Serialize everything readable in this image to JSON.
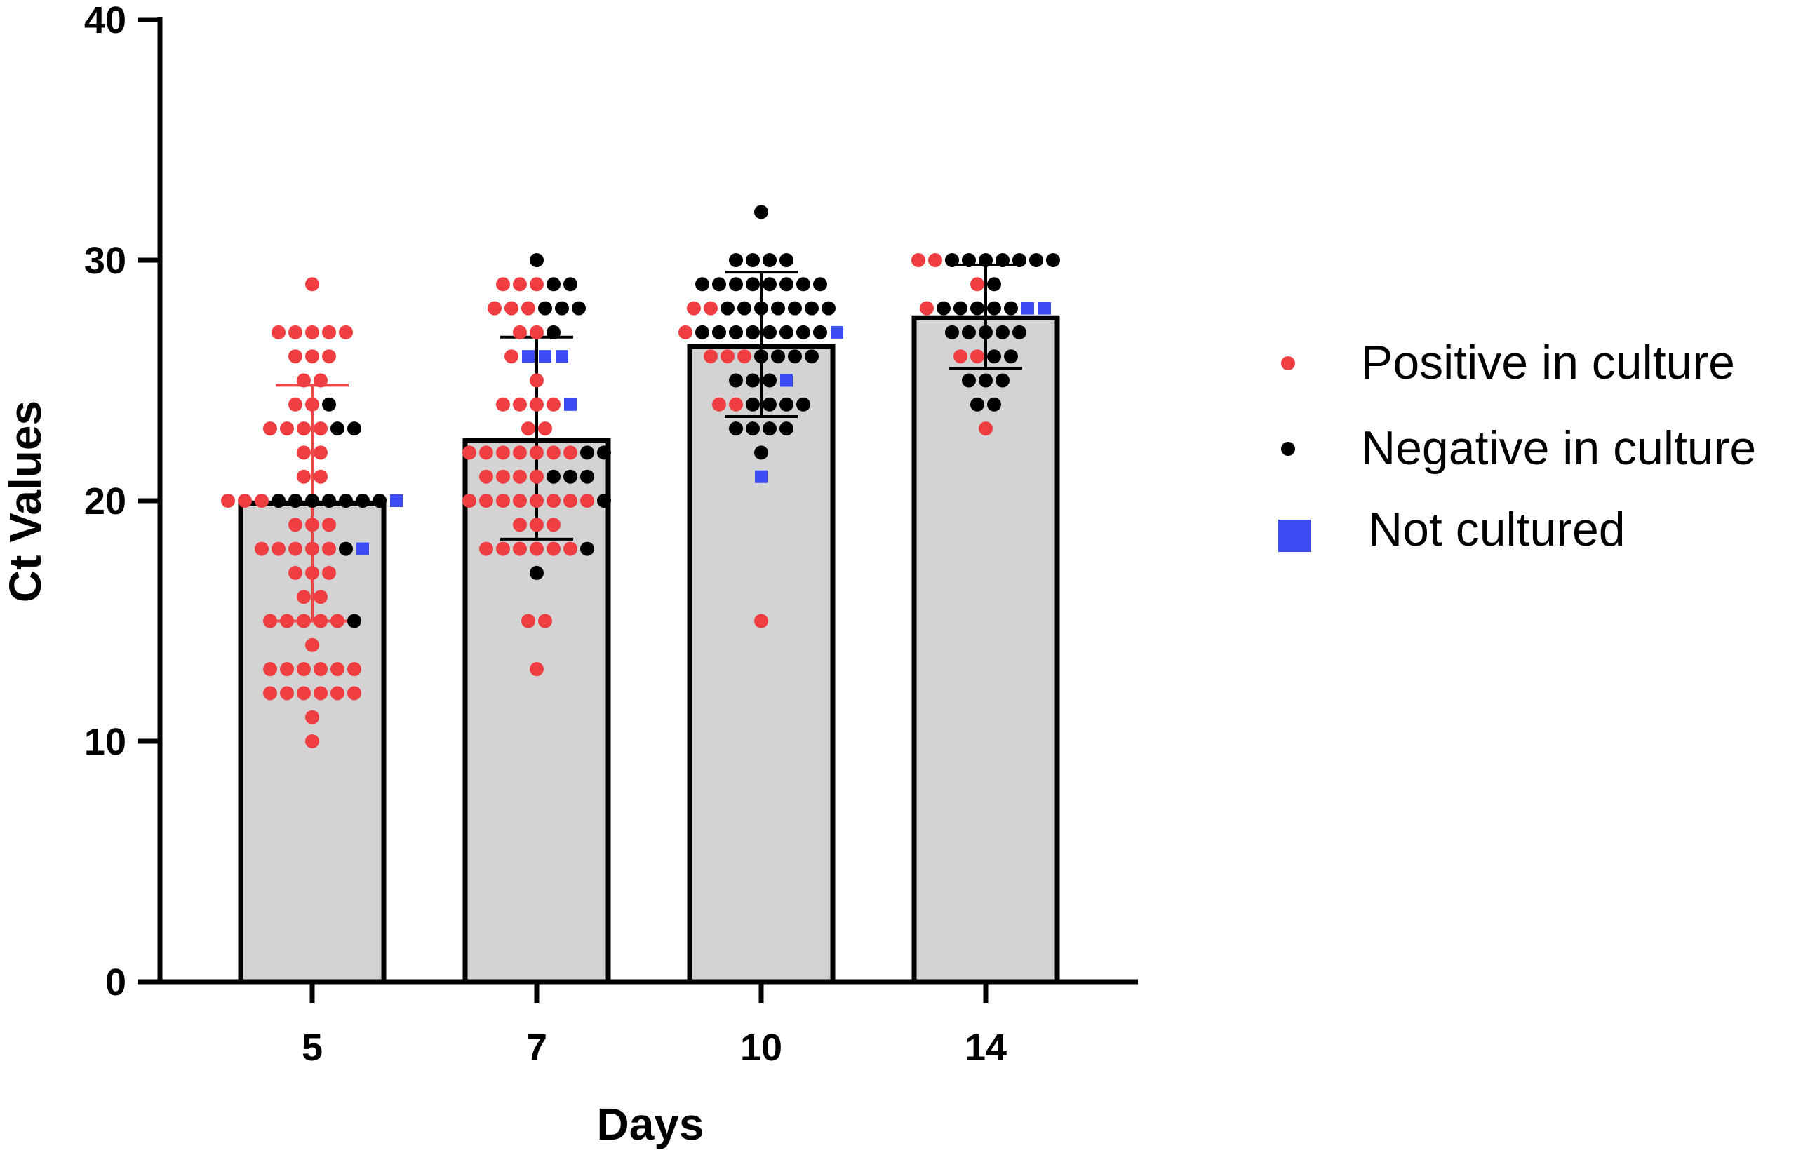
{
  "chart_data": {
    "type": "bar",
    "xlabel": "Days",
    "ylabel": "Ct Values",
    "ylim": [
      0,
      40
    ],
    "yticks": [
      "0",
      "10",
      "20",
      "30",
      "40"
    ],
    "categories": [
      "5",
      "7",
      "10",
      "14"
    ],
    "bars": [
      {
        "category": "5",
        "mean": 19.9,
        "sd_low": 15.0,
        "sd_high": 24.8,
        "errorbar_color": "#e84a4a"
      },
      {
        "category": "7",
        "mean": 22.5,
        "sd_low": 18.4,
        "sd_high": 26.8,
        "errorbar_color": "#000000"
      },
      {
        "category": "10",
        "mean": 26.4,
        "sd_low": 23.5,
        "sd_high": 29.5,
        "errorbar_color": "#000000"
      },
      {
        "category": "14",
        "mean": 27.6,
        "sd_low": 25.5,
        "sd_high": 29.8,
        "errorbar_color": "#000000"
      }
    ],
    "series": [
      {
        "name": "Positive in culture",
        "color": "#ef3e42",
        "marker": "circle",
        "points": {
          "5": [
            29,
            27,
            27,
            27,
            27,
            27,
            26,
            26,
            26,
            25,
            25,
            24,
            24,
            23,
            23,
            23,
            23,
            22,
            22,
            21,
            21,
            20,
            20,
            20,
            19,
            19,
            19,
            18,
            18,
            18,
            18,
            18,
            17,
            17,
            17,
            16,
            16,
            15,
            15,
            15,
            15,
            15,
            14,
            13,
            13,
            13,
            13,
            13,
            13,
            12,
            12,
            12,
            12,
            12,
            12,
            11,
            10
          ],
          "7": [
            29,
            29,
            29,
            28,
            28,
            28,
            27,
            27,
            26,
            25,
            24,
            24,
            24,
            24,
            23,
            23,
            22,
            22,
            22,
            22,
            22,
            22,
            22,
            21,
            21,
            21,
            21,
            20,
            20,
            20,
            20,
            20,
            20,
            20,
            20,
            19,
            19,
            19,
            18,
            18,
            18,
            18,
            18,
            18,
            15,
            15,
            13
          ],
          "10": [
            28,
            28,
            27,
            26,
            26,
            26,
            24,
            24,
            15
          ],
          "14": [
            30,
            30,
            29,
            28,
            26,
            26,
            23
          ]
        }
      },
      {
        "name": "Negative in culture",
        "color": "#000000",
        "marker": "circle",
        "points": {
          "5": [
            24,
            23,
            23,
            20,
            20,
            20,
            20,
            20,
            20,
            20,
            18,
            15
          ],
          "7": [
            30,
            29,
            29,
            28,
            28,
            28,
            27,
            22,
            22,
            21,
            21,
            21,
            20,
            18,
            17
          ],
          "10": [
            32,
            30,
            30,
            30,
            30,
            29,
            29,
            29,
            29,
            29,
            29,
            29,
            29,
            28,
            28,
            28,
            28,
            28,
            28,
            28,
            27,
            27,
            27,
            27,
            27,
            27,
            27,
            27,
            26,
            26,
            26,
            26,
            25,
            25,
            25,
            24,
            24,
            24,
            24,
            23,
            23,
            23,
            23,
            22
          ],
          "14": [
            30,
            30,
            30,
            30,
            30,
            30,
            30,
            29,
            28,
            28,
            28,
            28,
            28,
            27,
            27,
            27,
            27,
            27,
            26,
            26,
            25,
            25,
            25,
            24,
            24
          ]
        }
      },
      {
        "name": "Not cultured",
        "color": "#3b4cf5",
        "marker": "square",
        "points": {
          "5": [
            20,
            18
          ],
          "7": [
            26,
            26,
            26,
            24
          ],
          "10": [
            27,
            25,
            21
          ],
          "14": [
            28,
            28
          ]
        }
      }
    ],
    "legend": {
      "position": "right",
      "entries": [
        "Positive in culture",
        "Negative in culture",
        "Not cultured"
      ]
    },
    "colors": {
      "bar_fill": "#d3d3d3",
      "bar_stroke": "#000000",
      "axis": "#000000"
    }
  }
}
